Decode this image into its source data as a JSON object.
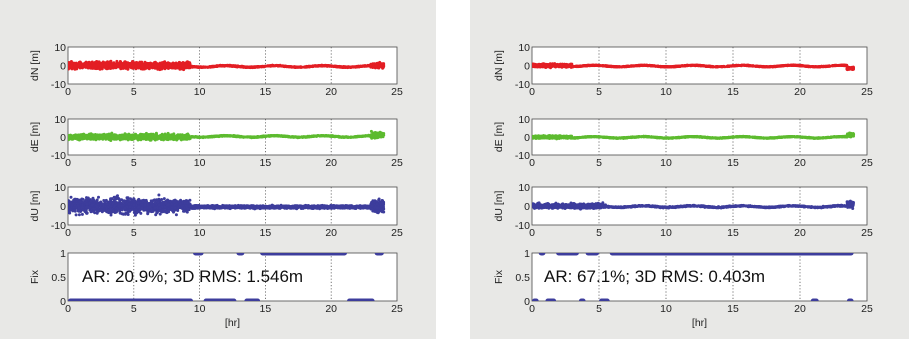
{
  "colors": {
    "dN": "#e31e24",
    "dE": "#5dbb2f",
    "dU": "#3d3d9c",
    "Fix": "#3d3d9c",
    "background": "#e8e8e6"
  },
  "chart_data": [
    {
      "type": "scatter",
      "annotation": "AR: 20.9%; 3D RMS: 1.546m",
      "xlabel": "[hr]",
      "xlim": [
        0,
        25
      ],
      "xticks": [
        "0",
        "5",
        "10",
        "15",
        "20",
        "25"
      ],
      "grid": "vertical dotted",
      "subplots": [
        {
          "name": "dN",
          "ylabel": "dN [m]",
          "ylim": [
            -10,
            10
          ],
          "yticks": [
            "10",
            "0",
            "-10"
          ],
          "segments": [
            {
              "x": [
                0.0,
                9.3
              ],
              "amplitude": 3.0,
              "offset": 0.0
            },
            {
              "x": [
                9.3,
                23.0
              ],
              "amplitude": 0.4,
              "offset": -0.5
            },
            {
              "x": [
                23.0,
                24.0
              ],
              "amplitude": 2.0,
              "offset": 0.0
            }
          ]
        },
        {
          "name": "dE",
          "ylabel": "dE [m]",
          "ylim": [
            -10,
            10
          ],
          "yticks": [
            "10",
            "0",
            "-10"
          ],
          "segments": [
            {
              "x": [
                0.0,
                9.3
              ],
              "amplitude": 2.5,
              "offset": 0.0
            },
            {
              "x": [
                9.3,
                23.0
              ],
              "amplitude": 0.4,
              "offset": 0.3
            },
            {
              "x": [
                23.0,
                24.0
              ],
              "amplitude": 2.5,
              "offset": 1.0
            }
          ]
        },
        {
          "name": "dU",
          "ylabel": "dU [m]",
          "ylim": [
            -10,
            10
          ],
          "yticks": [
            "10",
            "0",
            "-10"
          ],
          "segments": [
            {
              "x": [
                0.0,
                9.3
              ],
              "amplitude": 6.5,
              "offset": 0.0
            },
            {
              "x": [
                9.3,
                23.0
              ],
              "amplitude": 1.2,
              "offset": -0.5
            },
            {
              "x": [
                23.0,
                24.0
              ],
              "amplitude": 6.0,
              "offset": 0.0
            }
          ]
        },
        {
          "name": "Fix",
          "ylabel": "Fix",
          "ylim": [
            0,
            1
          ],
          "yticks": [
            "1",
            "0.5",
            "0"
          ],
          "fixed_intervals": [
            [
              9.5,
              10.3
            ],
            [
              12.8,
              13.4
            ],
            [
              14.6,
              21.2
            ],
            [
              23.3,
              24.0
            ]
          ],
          "float_intervals": [
            [
              0.0,
              9.5
            ],
            [
              10.3,
              12.8
            ],
            [
              13.4,
              14.6
            ],
            [
              21.2,
              23.3
            ]
          ]
        }
      ]
    },
    {
      "type": "scatter",
      "annotation": "AR: 67.1%; 3D RMS: 0.403m",
      "xlabel": "[hr]",
      "xlim": [
        0,
        25
      ],
      "xticks": [
        "0",
        "5",
        "10",
        "15",
        "20",
        "25"
      ],
      "grid": "vertical dotted",
      "subplots": [
        {
          "name": "dN",
          "ylabel": "dN [m]",
          "ylim": [
            -10,
            10
          ],
          "yticks": [
            "10",
            "0",
            "-10"
          ],
          "segments": [
            {
              "x": [
                0.0,
                3.0
              ],
              "amplitude": 1.5,
              "offset": 0.0
            },
            {
              "x": [
                3.0,
                23.5
              ],
              "amplitude": 0.3,
              "offset": -0.3
            },
            {
              "x": [
                23.5,
                24.0
              ],
              "amplitude": 1.5,
              "offset": -1.5
            }
          ]
        },
        {
          "name": "dE",
          "ylabel": "dE [m]",
          "ylim": [
            -10,
            10
          ],
          "yticks": [
            "10",
            "0",
            "-10"
          ],
          "segments": [
            {
              "x": [
                0.0,
                3.0
              ],
              "amplitude": 1.2,
              "offset": 0.0
            },
            {
              "x": [
                3.0,
                23.5
              ],
              "amplitude": 0.3,
              "offset": -0.2
            },
            {
              "x": [
                23.5,
                24.0
              ],
              "amplitude": 1.5,
              "offset": 1.0
            }
          ]
        },
        {
          "name": "dU",
          "ylabel": "dU [m]",
          "ylim": [
            -10,
            10
          ],
          "yticks": [
            "10",
            "0",
            "-10"
          ],
          "segments": [
            {
              "x": [
                0.0,
                5.5
              ],
              "amplitude": 2.0,
              "offset": 0.0
            },
            {
              "x": [
                5.5,
                23.5
              ],
              "amplitude": 0.5,
              "offset": -0.3
            },
            {
              "x": [
                23.5,
                24.0
              ],
              "amplitude": 3.0,
              "offset": 1.0
            }
          ]
        },
        {
          "name": "Fix",
          "ylabel": "Fix",
          "ylim": [
            0,
            1
          ],
          "yticks": [
            "1",
            "0.5",
            "0"
          ],
          "fixed_intervals": [
            [
              0.5,
              1.0
            ],
            [
              1.8,
              3.5
            ],
            [
              4.0,
              5.0
            ],
            [
              5.8,
              24.0
            ]
          ],
          "float_intervals": [
            [
              0.0,
              0.5
            ],
            [
              1.0,
              1.8
            ],
            [
              3.5,
              4.0
            ],
            [
              5.0,
              5.8
            ],
            [
              20.8,
              21.4
            ],
            [
              23.5,
              24.0
            ]
          ]
        }
      ]
    }
  ]
}
